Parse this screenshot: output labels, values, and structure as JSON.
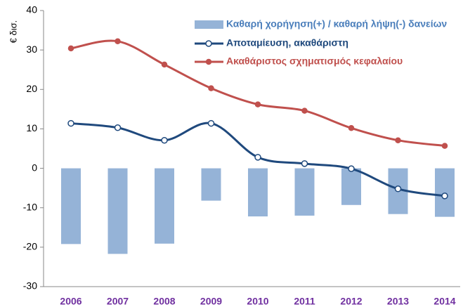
{
  "chart_data": {
    "type": "bar-line",
    "y_label": "€ δισ.",
    "categories": [
      "2006",
      "2007",
      "2008",
      "2009",
      "2010",
      "2011",
      "2012",
      "2013",
      "2014"
    ],
    "series": [
      {
        "name": "Καθαρή χορήγηση(+) / καθαρή λήψη(-) δανείων",
        "type": "bar",
        "color": "#95b3d7",
        "values": [
          -19.2,
          -21.7,
          -19.1,
          -8.2,
          -12.2,
          -12.0,
          -9.3,
          -11.6,
          -12.3
        ]
      },
      {
        "name": "Αποταμίευση, ακαθάριστη",
        "type": "line",
        "color": "#1f497d",
        "marker": "hollow",
        "values": [
          11.4,
          10.3,
          7.1,
          11.4,
          2.8,
          1.2,
          -0.1,
          -5.2,
          -7.0
        ]
      },
      {
        "name": "Ακαθάριστος σχηματισμός κεφαλαίου",
        "type": "line",
        "color": "#c0504d",
        "marker": "filled",
        "values": [
          30.4,
          32.2,
          26.3,
          20.3,
          16.2,
          14.6,
          10.2,
          7.1,
          5.7
        ]
      }
    ],
    "ylim": [
      -30,
      40
    ],
    "yticks": [
      -30,
      -20,
      -10,
      0,
      10,
      20,
      30,
      40
    ]
  }
}
